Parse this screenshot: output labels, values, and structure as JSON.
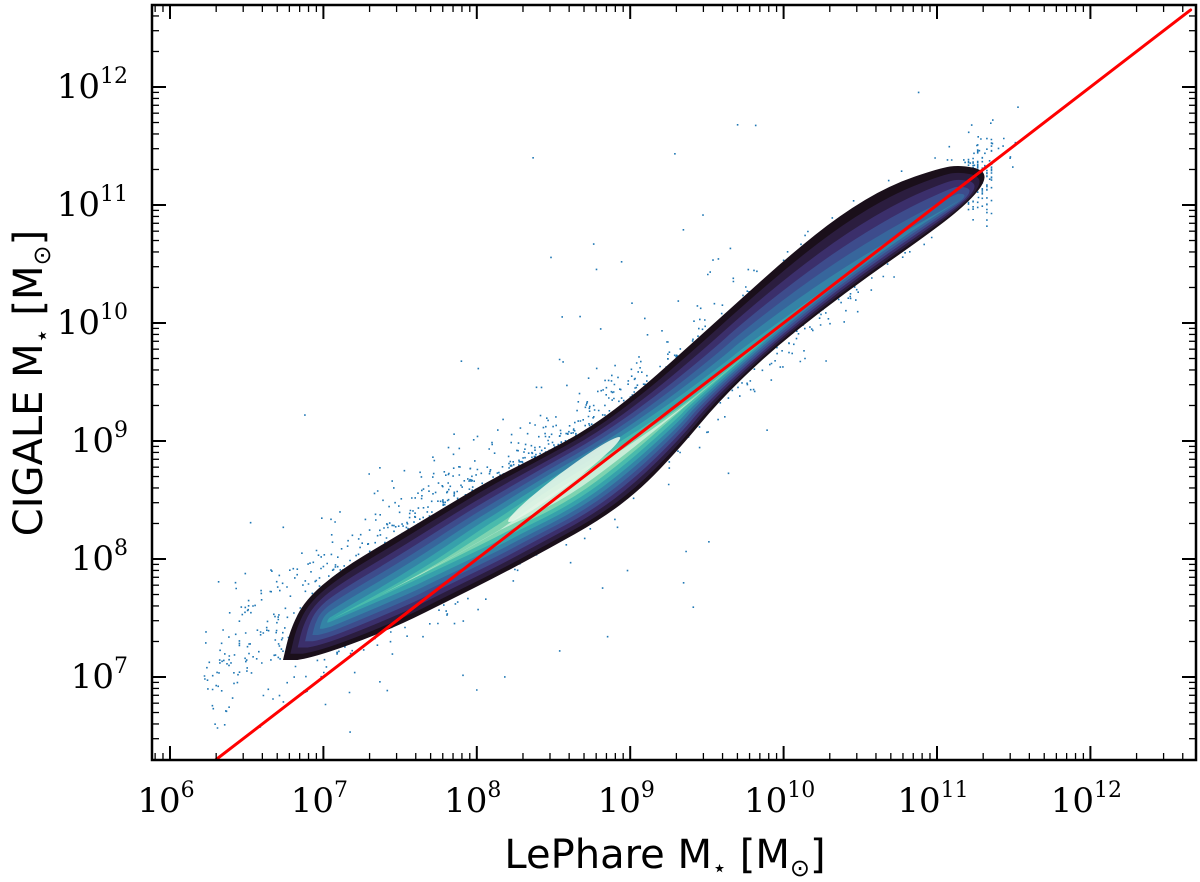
{
  "chart_data": {
    "type": "scatter",
    "subtype": "scatter with KDE density contours and 1:1 reference line",
    "title": "",
    "xlabel": "LePhare M⋆ [M⊙]",
    "ylabel": "CIGALE M⋆ [M⊙]",
    "xlabel_parts": {
      "main": "LePhare M",
      "sub": "⋆",
      "unit_open": " [M",
      "unit_sub": "⊙",
      "unit_close": "]"
    },
    "ylabel_parts": {
      "main": "CIGALE M",
      "sub": "⋆",
      "unit_open": " [M",
      "unit_sub": "⊙",
      "unit_close": "]"
    },
    "xscale": "log",
    "yscale": "log",
    "xlim": [
      750000.0,
      4500000000000.0
    ],
    "ylim": [
      2000000.0,
      4500000000000.0
    ],
    "xticks": [
      {
        "base": "10",
        "exp": "6",
        "value": 1000000.0
      },
      {
        "base": "10",
        "exp": "7",
        "value": 10000000.0
      },
      {
        "base": "10",
        "exp": "8",
        "value": 100000000.0
      },
      {
        "base": "10",
        "exp": "9",
        "value": 1000000000.0
      },
      {
        "base": "10",
        "exp": "10",
        "value": 10000000000.0
      },
      {
        "base": "10",
        "exp": "11",
        "value": 100000000000.0
      },
      {
        "base": "10",
        "exp": "12",
        "value": 1000000000000.0
      }
    ],
    "yticks": [
      {
        "base": "10",
        "exp": "7",
        "value": 10000000.0
      },
      {
        "base": "10",
        "exp": "8",
        "value": 100000000.0
      },
      {
        "base": "10",
        "exp": "9",
        "value": 1000000000.0
      },
      {
        "base": "10",
        "exp": "10",
        "value": 10000000000.0
      },
      {
        "base": "10",
        "exp": "11",
        "value": 100000000000.0
      },
      {
        "base": "10",
        "exp": "12",
        "value": 1000000000000.0
      }
    ],
    "grid": false,
    "legend": null,
    "series": [
      {
        "name": "galaxies",
        "kind": "scatter",
        "color": "#1f77b4",
        "marker_size": 1.5,
        "description": "Dense cloud of points following the 1:1 relation from ~2e6 to ~5e11, with CIGALE masses systematically higher than LePhare below ~1e9",
        "trend_points": [
          {
            "x": 3000000.0,
            "y": 20000000.0
          },
          {
            "x": 10000000.0,
            "y": 50000000.0
          },
          {
            "x": 100000000.0,
            "y": 200000000.0
          },
          {
            "x": 1000000000.0,
            "y": 1200000000.0
          },
          {
            "x": 10000000000.0,
            "y": 12000000000.0
          },
          {
            "x": 100000000000.0,
            "y": 120000000000.0
          },
          {
            "x": 200000000000.0,
            "y": 200000000000.0
          }
        ]
      },
      {
        "name": "density",
        "kind": "kde-contours",
        "colormap": "mako",
        "colors": [
          "#1a0f1a",
          "#2b1d3f",
          "#3b2f6b",
          "#3d4c8c",
          "#37669c",
          "#3483a6",
          "#36a1ab",
          "#49bbac",
          "#7dd3b0",
          "#c6ecd6"
        ],
        "peak": {
          "x": 400000000.0,
          "y": 500000000.0
        },
        "outer_contour_range": {
          "x": [
            5000000.0,
            200000000000.0
          ],
          "y": [
            13000000.0,
            220000000000.0
          ]
        }
      },
      {
        "name": "one-to-one",
        "kind": "line",
        "color": "#ff0000",
        "x": [
          2000000.0,
          4500000000000.0
        ],
        "y": [
          2000000.0,
          4500000000000.0
        ]
      }
    ]
  },
  "style": {
    "frame_color": "#000000",
    "scatter_color": "#1f77b4",
    "line_color": "#ff0000",
    "background": "#ffffff"
  }
}
